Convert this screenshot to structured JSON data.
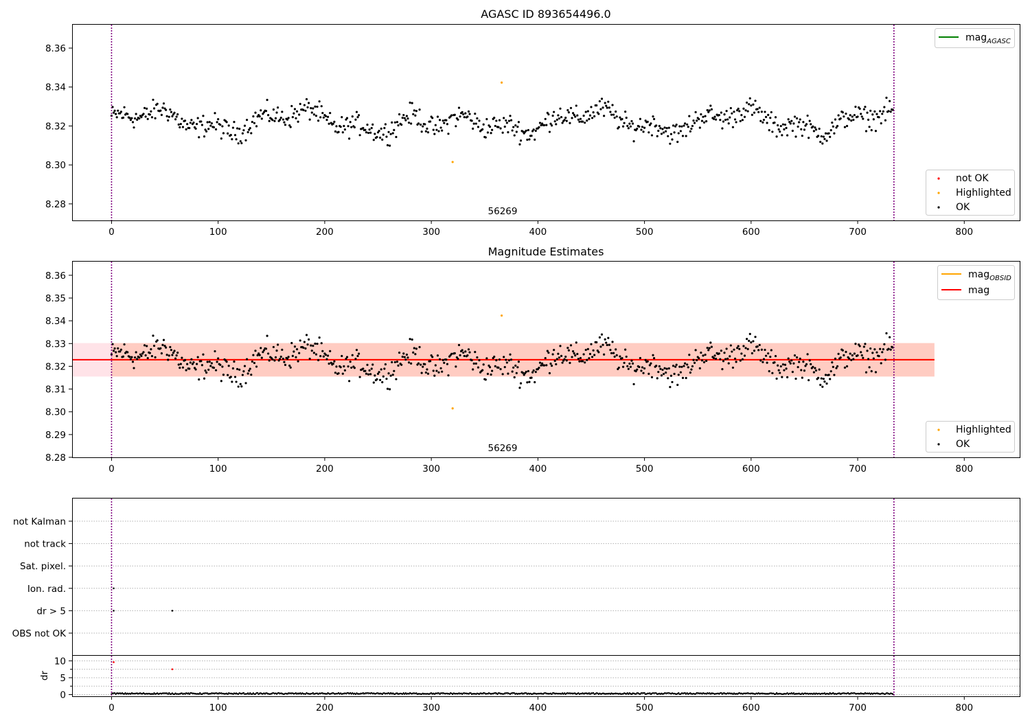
{
  "figure": {
    "title": "AGASC ID 893654496.0"
  },
  "colors": {
    "ok": "#000000",
    "highlighted": "#ffa500",
    "not_ok": "#ff0000",
    "mag_agasc": "#008000",
    "mag_obsid": "#ffa500",
    "mag": "#ff0000",
    "band_outer": "#ffc0cb",
    "band_inner": "#ffa07a",
    "obsid_line": "#800080",
    "grid": "#b0b0b0"
  },
  "chart_data": [
    {
      "type": "scatter",
      "id": "agasc",
      "title": "AGASC ID 893654496.0",
      "xlim": [
        -37,
        852
      ],
      "ylim": [
        8.2715,
        8.372
      ],
      "xticks": [
        0,
        100,
        200,
        300,
        400,
        500,
        600,
        700,
        800
      ],
      "yticks": [
        8.28,
        8.3,
        8.32,
        8.34,
        8.36
      ],
      "ytick_labels": [
        "8.28",
        "8.30",
        "8.32",
        "8.34",
        "8.36"
      ],
      "obsid_label": "56269",
      "obsid_boundaries": [
        0,
        734
      ],
      "series_mean": 8.3225,
      "highlighted_points": [
        [
          320,
          8.3015
        ],
        [
          366,
          8.3423
        ]
      ],
      "n_points": 734,
      "legend_lines": [
        {
          "label": "mag",
          "sub": "AGASC",
          "color_key": "mag_agasc"
        }
      ],
      "legend_markers": [
        {
          "label": "not OK",
          "color_key": "not_ok"
        },
        {
          "label": "Highlighted",
          "color_key": "highlighted"
        },
        {
          "label": "OK",
          "color_key": "ok"
        }
      ]
    },
    {
      "type": "scatter",
      "id": "estimates",
      "title": "Magnitude Estimates",
      "xlim": [
        -37,
        852
      ],
      "ylim": [
        8.28,
        8.366
      ],
      "xticks": [
        0,
        100,
        200,
        300,
        400,
        500,
        600,
        700,
        800
      ],
      "yticks": [
        8.28,
        8.29,
        8.3,
        8.31,
        8.32,
        8.33,
        8.34,
        8.35,
        8.36
      ],
      "ytick_labels": [
        "8.28",
        "8.29",
        "8.30",
        "8.31",
        "8.32",
        "8.33",
        "8.34",
        "8.35",
        "8.36"
      ],
      "obsid_label": "56269",
      "obsid_boundaries": [
        0,
        734
      ],
      "mag": 8.3229,
      "mag_obsid": 8.3229,
      "band_outer": [
        8.3155,
        8.3302
      ],
      "band_inner": [
        8.3155,
        8.3302
      ],
      "band_x": [
        -37,
        772
      ],
      "legend_lines": [
        {
          "label": "mag",
          "sub": "OBSID",
          "color_key": "mag_obsid"
        },
        {
          "label": "mag",
          "sub": "",
          "color_key": "mag"
        }
      ],
      "legend_markers": [
        {
          "label": "Highlighted",
          "color_key": "highlighted"
        },
        {
          "label": "OK",
          "color_key": "ok"
        }
      ]
    },
    {
      "type": "scatter",
      "id": "flags",
      "categories": [
        "not Kalman",
        "not track",
        "Sat. pixel.",
        "Ion. rad.",
        "dr > 5",
        "OBS not OK"
      ],
      "flag_points": [
        {
          "category": "Ion. rad.",
          "x": 2
        },
        {
          "category": "dr > 5",
          "x": 2
        },
        {
          "category": "dr > 5",
          "x": 57
        }
      ],
      "obsid_boundaries": [
        0,
        734
      ]
    },
    {
      "type": "scatter",
      "id": "dr",
      "ylabel": "dr",
      "xlim": [
        -37,
        852
      ],
      "ylim": [
        -0.5,
        11.5
      ],
      "xticks": [
        0,
        100,
        200,
        300,
        400,
        500,
        600,
        700,
        800
      ],
      "yticks": [
        0,
        5,
        10
      ],
      "ytick_labels": [
        "0",
        "5",
        "10"
      ],
      "dr_outliers": [
        [
          2,
          9.6
        ],
        [
          57,
          7.5
        ]
      ],
      "dr_baseline": 0.3,
      "obsid_boundaries": [
        0,
        734
      ]
    }
  ]
}
